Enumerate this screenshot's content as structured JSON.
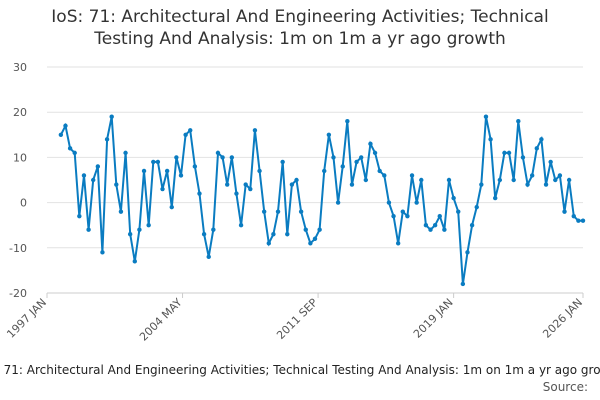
{
  "chart_data": {
    "type": "line",
    "title": "IoS: 71: Architectural And Engineering Activities; Technical Testing And Analysis: 1m on 1m a yr ago growth",
    "source": "Source:",
    "x": [
      "1997-10",
      "1998-01",
      "1998-04",
      "1998-07",
      "1998-10",
      "1999-01",
      "1999-04",
      "1999-07",
      "1999-10",
      "2000-01",
      "2000-04",
      "2000-07",
      "2000-10",
      "2001-01",
      "2001-04",
      "2001-07",
      "2001-10",
      "2002-01",
      "2002-04",
      "2002-07",
      "2002-10",
      "2003-01",
      "2003-04",
      "2003-07",
      "2003-10",
      "2004-01",
      "2004-04",
      "2004-07",
      "2004-10",
      "2005-01",
      "2005-04",
      "2005-07",
      "2005-10",
      "2006-01",
      "2006-04",
      "2006-07",
      "2006-10",
      "2007-01",
      "2007-04",
      "2007-07",
      "2007-10",
      "2008-01",
      "2008-04",
      "2008-07",
      "2008-10",
      "2009-01",
      "2009-04",
      "2009-07",
      "2009-10",
      "2010-01",
      "2010-04",
      "2010-07",
      "2010-10",
      "2011-01",
      "2011-04",
      "2011-07",
      "2011-10",
      "2012-01",
      "2012-04",
      "2012-07",
      "2012-10",
      "2013-01",
      "2013-04",
      "2013-07",
      "2013-10",
      "2014-01",
      "2014-04",
      "2014-07",
      "2014-10",
      "2015-01",
      "2015-04",
      "2015-07",
      "2015-10",
      "2016-01",
      "2016-04",
      "2016-07",
      "2016-10",
      "2017-01",
      "2017-04",
      "2017-07",
      "2017-10",
      "2018-01",
      "2018-04",
      "2018-07",
      "2018-10",
      "2019-01",
      "2019-04",
      "2019-07",
      "2019-10",
      "2020-01",
      "2020-04",
      "2020-07",
      "2020-10",
      "2021-01",
      "2021-04",
      "2021-07",
      "2021-10",
      "2022-01",
      "2022-04",
      "2022-07",
      "2022-10",
      "2023-01",
      "2023-04",
      "2023-07",
      "2023-10",
      "2024-01",
      "2024-04",
      "2024-07",
      "2024-10",
      "2025-01",
      "2025-04",
      "2025-07",
      "2025-10",
      "2026-01"
    ],
    "series": [
      {
        "name": "IoS: 71: Architectural And Engineering Activities; Technical Testing And Analysis: 1m on 1m a yr ago growth",
        "color": "#0a7cc1",
        "values": [
          15,
          17,
          12,
          11,
          -3,
          6,
          -6,
          5,
          8,
          -11,
          14,
          19,
          4,
          -2,
          11,
          -7,
          -13,
          -6,
          7,
          -5,
          9,
          9,
          3,
          7,
          -1,
          10,
          6,
          15,
          16,
          8,
          2,
          -7,
          -12,
          -6,
          11,
          10,
          4,
          10,
          2,
          -5,
          4,
          3,
          16,
          7,
          -2,
          -9,
          -7,
          -2,
          9,
          -7,
          4,
          5,
          -2,
          -6,
          -9,
          -8,
          -6,
          7,
          15,
          10,
          0,
          8,
          18,
          4,
          9,
          10,
          5,
          13,
          11,
          7,
          6,
          0,
          -3,
          -9,
          -2,
          -3,
          6,
          0,
          5,
          -5,
          -6,
          -5,
          -3,
          -6,
          5,
          1,
          -2,
          -18,
          -11,
          -5,
          -1,
          4,
          19,
          14,
          1,
          5,
          11,
          11,
          5,
          18,
          10,
          4,
          6,
          12,
          14,
          4,
          9,
          5,
          6,
          -2,
          5,
          -3,
          -4,
          -4
        ]
      }
    ],
    "xlim": [
      "1997-01",
      "2026-01"
    ],
    "xticks": [
      {
        "value": "1997-01",
        "label": "1997 JAN"
      },
      {
        "value": "2004-05",
        "label": "2004 MAY"
      },
      {
        "value": "2011-09",
        "label": "2011 SEP"
      },
      {
        "value": "2019-01",
        "label": "2019 JAN"
      },
      {
        "value": "2026-01",
        "label": "2026 JAN"
      }
    ],
    "ylim": [
      -20,
      30
    ],
    "yticks": [
      -20,
      -10,
      0,
      10,
      20,
      30
    ],
    "grid": true
  }
}
